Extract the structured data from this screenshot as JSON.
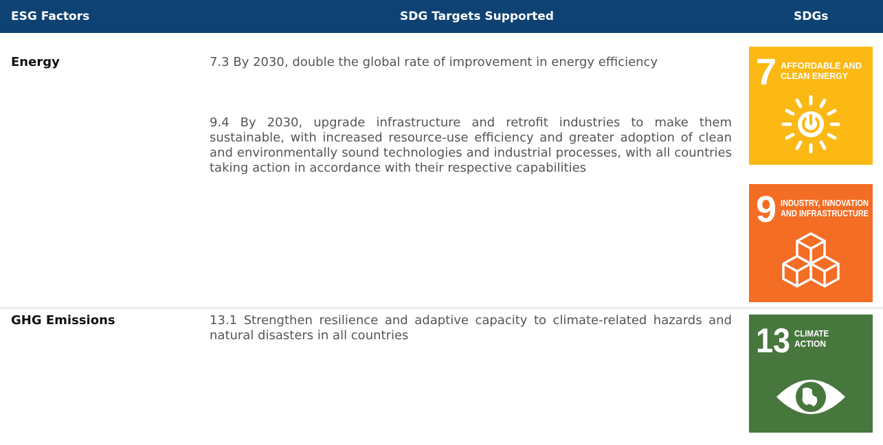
{
  "table": {
    "headers": [
      "ESG Factors",
      "SDG Targets Supported",
      "SDGs"
    ],
    "rows": [
      {
        "factor": "Energy",
        "targets": [
          "7.3 By 2030, double the global rate of improvement in energy efficiency",
          "9.4 By 2030, upgrade infrastructure and retrofit industries to make them sustainable, with increased resource-use efficiency and greater adoption of clean and environmentally sound technologies and industrial processes, with all countries taking action in accordance with their respective capabilities"
        ],
        "sdgs": [
          {
            "number": "7",
            "title": [
              "AFFORDABLE AND",
              "CLEAN ENERGY"
            ]
          },
          {
            "number": "9",
            "title": [
              "INDUSTRY, INNOVATION",
              "AND INFRASTRUCTURE"
            ]
          }
        ]
      },
      {
        "factor": "GHG Emissions",
        "targets": [
          "13.1 Strengthen resilience and adaptive capacity to climate-related hazards and natural disasters in all countries"
        ],
        "sdgs": [
          {
            "number": "13",
            "title": [
              "CLIMATE",
              "ACTION"
            ]
          }
        ]
      }
    ]
  }
}
